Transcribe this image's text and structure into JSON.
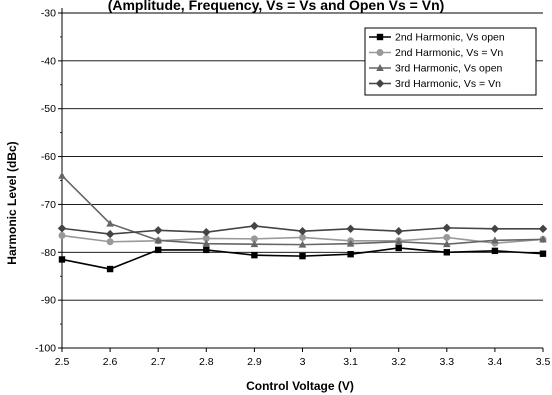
{
  "chart_data": {
    "type": "line",
    "title": "(Amplitude, Frequency, Vs = Vs and Open Vs = Vn)",
    "xlabel": "Control Voltage (V)",
    "ylabel": "Harmonic Level (dBc)",
    "xlim": [
      2.5,
      3.5
    ],
    "ylim": [
      -100,
      -30
    ],
    "x": [
      2.5,
      2.6,
      2.7,
      2.8,
      2.9,
      3.0,
      3.1,
      3.2,
      3.3,
      3.4,
      3.5
    ],
    "x_tick_labels": [
      "2.5",
      "2.6",
      "2.7",
      "2.8",
      "2.9",
      "3",
      "3.1",
      "3.2",
      "3.3",
      "3.4",
      "3.5"
    ],
    "y_ticks": [
      -100,
      -90,
      -80,
      -70,
      -60,
      -50,
      -40,
      -30
    ],
    "y_tick_labels": [
      "-100",
      "-90",
      "-80",
      "-70",
      "-60",
      "-50",
      "-40",
      "-30"
    ],
    "grid": "horizontal",
    "legend_position": "top-right",
    "series": [
      {
        "name": "2nd Harmonic, Vs open",
        "color": "#000000",
        "marker": "square",
        "values": [
          -81.5,
          -83.5,
          -79.5,
          -79.5,
          -80.6,
          -80.8,
          -80.4,
          -79.1,
          -80.0,
          -79.7,
          -80.3
        ]
      },
      {
        "name": "2nd Harmonic, Vs = Vn",
        "color": "#999999",
        "marker": "circle",
        "values": [
          -76.5,
          -77.8,
          -77.6,
          -77.1,
          -77.2,
          -76.9,
          -77.6,
          -77.6,
          -76.9,
          -78.1,
          -77.3
        ]
      },
      {
        "name": "3rd Harmonic, Vs open",
        "color": "#666666",
        "marker": "triangle",
        "values": [
          -64.0,
          -74.0,
          -77.5,
          -78.2,
          -78.3,
          -78.4,
          -78.2,
          -77.8,
          -78.3,
          -77.5,
          -77.3
        ]
      },
      {
        "name": "3rd Harmonic, Vs = Vn",
        "color": "#444444",
        "marker": "diamond",
        "values": [
          -75.0,
          -76.2,
          -75.4,
          -75.8,
          -74.5,
          -75.6,
          -75.1,
          -75.6,
          -74.9,
          -75.1,
          -75.1
        ]
      }
    ]
  }
}
